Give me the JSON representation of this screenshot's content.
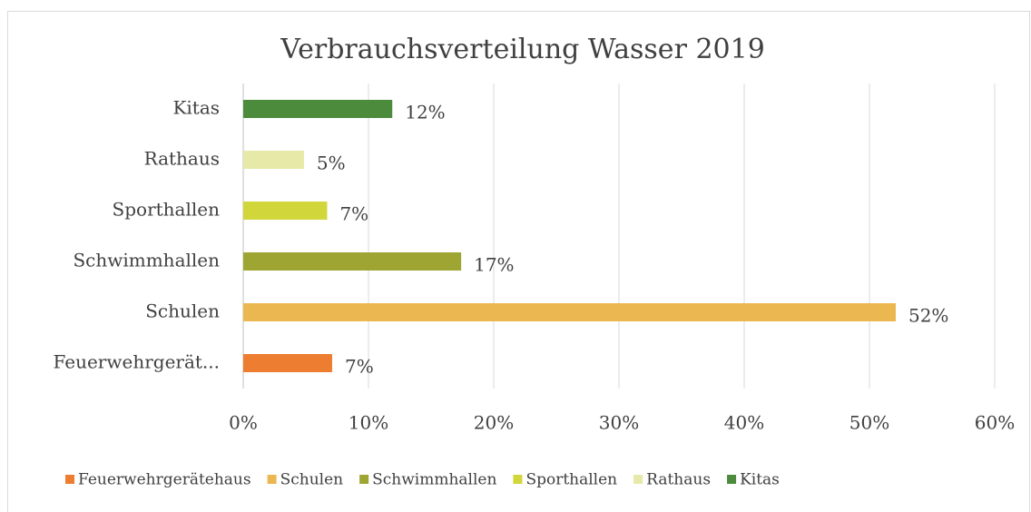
{
  "chart_data": {
    "type": "hbar",
    "title": "Verbrauchsverteilung Wasser 2019",
    "categories": [
      "Feuerwehrgerät...",
      "Schulen",
      "Schwimmhallen",
      "Sporthallen",
      "Rathaus",
      "Kitas"
    ],
    "series": [
      {
        "name": "Feuerwehrgerätehaus",
        "color": "#ed7d31",
        "values": [
          7.1,
          null,
          null,
          null,
          null,
          null
        ],
        "value_labels": [
          "7%",
          null,
          null,
          null,
          null,
          null
        ]
      },
      {
        "name": "Schulen",
        "color": "#ebb751",
        "values": [
          null,
          52.1,
          null,
          null,
          null,
          null
        ],
        "value_labels": [
          null,
          "52%",
          null,
          null,
          null,
          null
        ]
      },
      {
        "name": "Schwimmhallen",
        "color": "#9ea532",
        "values": [
          null,
          null,
          17.4,
          null,
          null,
          null
        ],
        "value_labels": [
          null,
          null,
          "17%",
          null,
          null,
          null
        ]
      },
      {
        "name": "Sporthallen",
        "color": "#d1d63b",
        "values": [
          null,
          null,
          null,
          6.7,
          null,
          null
        ],
        "value_labels": [
          null,
          null,
          null,
          "7%",
          null,
          null
        ]
      },
      {
        "name": "Rathaus",
        "color": "#e6e9a8",
        "values": [
          null,
          null,
          null,
          null,
          4.85,
          null
        ],
        "value_labels": [
          null,
          null,
          null,
          null,
          "5%",
          null
        ]
      },
      {
        "name": "Kitas",
        "color": "#4b8b3b",
        "values": [
          null,
          null,
          null,
          null,
          null,
          11.9
        ],
        "value_labels": [
          null,
          null,
          null,
          null,
          null,
          "12%"
        ]
      }
    ],
    "xlim": [
      0,
      60
    ],
    "xticks": [
      {
        "value": 0,
        "label": "0%"
      },
      {
        "value": 10,
        "label": "10%"
      },
      {
        "value": 20,
        "label": "20%"
      },
      {
        "value": 30,
        "label": "30%"
      },
      {
        "value": 40,
        "label": "40%"
      },
      {
        "value": 50,
        "label": "50%"
      },
      {
        "value": 60,
        "label": "60%"
      }
    ],
    "grid": true,
    "legend": "bottom"
  }
}
